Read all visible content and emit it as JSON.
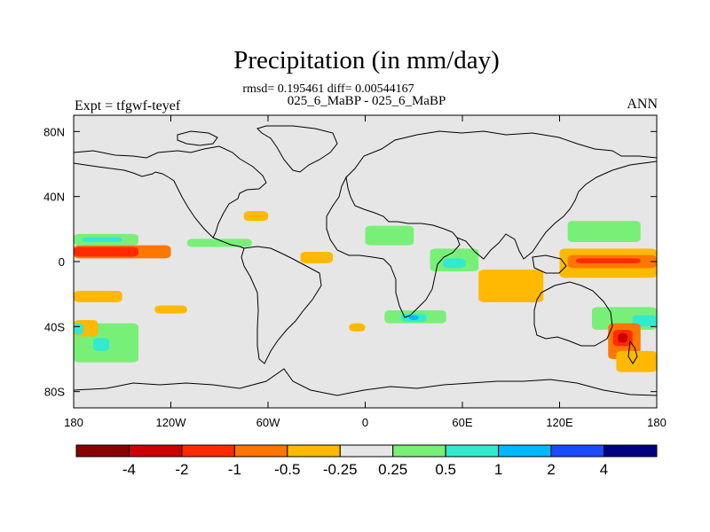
{
  "plot": {
    "title": "Precipitation (in mm/day)",
    "stats": "rmsd= 0.195461 diff= 0.00544167",
    "experiments": "025_6_MaBP - 025_6_MaBP",
    "expt_label": "Expt = tfgwf-teyef",
    "season": "ANN"
  },
  "chart_data": {
    "type": "heatmap",
    "title": "Precipitation (in mm/day)",
    "projection": "cylindrical-equidistant",
    "xlim": [
      -180,
      180
    ],
    "ylim": [
      -90,
      90
    ],
    "x_ticks": [
      {
        "value": -180,
        "label": "180"
      },
      {
        "value": -120,
        "label": "120W"
      },
      {
        "value": -60,
        "label": "60W"
      },
      {
        "value": 0,
        "label": "0"
      },
      {
        "value": 60,
        "label": "60E"
      },
      {
        "value": 120,
        "label": "120E"
      },
      {
        "value": 180,
        "label": "180"
      }
    ],
    "y_ticks": [
      {
        "value": 80,
        "label": "80N"
      },
      {
        "value": 40,
        "label": "40N"
      },
      {
        "value": 0,
        "label": "0"
      },
      {
        "value": -40,
        "label": "40S"
      },
      {
        "value": -80,
        "label": "80S"
      }
    ],
    "colorbar": {
      "colors": [
        "#8b0000",
        "#cc0000",
        "#ff2a00",
        "#ff7700",
        "#ffb900",
        "#e6e6e6",
        "#78f078",
        "#33ead0",
        "#00b8ff",
        "#1a4bff",
        "#000080"
      ],
      "labels": [
        "-4",
        "-2",
        "-1",
        "-0.5",
        "-0.25",
        "0.25",
        "0.5",
        "1",
        "2",
        "4"
      ]
    },
    "anomaly_regions": [
      {
        "lon": [
          -180,
          -120
        ],
        "lat": [
          2,
          10
        ],
        "level": -0.5
      },
      {
        "lon": [
          -180,
          -140
        ],
        "lat": [
          3,
          9
        ],
        "level": -1
      },
      {
        "lon": [
          -180,
          -140
        ],
        "lat": [
          10,
          17
        ],
        "level": 0.5
      },
      {
        "lon": [
          -175,
          -150
        ],
        "lat": [
          12,
          15
        ],
        "level": 1
      },
      {
        "lon": [
          -110,
          -70
        ],
        "lat": [
          9,
          14
        ],
        "level": 0.5
      },
      {
        "lon": [
          -75,
          -60
        ],
        "lat": [
          25,
          31
        ],
        "level": -0.25
      },
      {
        "lon": [
          -40,
          -20
        ],
        "lat": [
          -1,
          6
        ],
        "level": -0.25
      },
      {
        "lon": [
          -180,
          -150
        ],
        "lat": [
          -25,
          -18
        ],
        "level": -0.25
      },
      {
        "lon": [
          -180,
          -140
        ],
        "lat": [
          -62,
          -38
        ],
        "level": 0.5
      },
      {
        "lon": [
          -168,
          -158
        ],
        "lat": [
          -55,
          -47
        ],
        "level": 1
      },
      {
        "lon": [
          -180,
          -165
        ],
        "lat": [
          -46,
          -36
        ],
        "level": -0.25
      },
      {
        "lon": [
          -180,
          -174
        ],
        "lat": [
          -45,
          -38
        ],
        "level": 1
      },
      {
        "lon": [
          -130,
          -110
        ],
        "lat": [
          -32,
          -27
        ],
        "level": -0.25
      },
      {
        "lon": [
          0,
          30
        ],
        "lat": [
          10,
          22
        ],
        "level": 0.5
      },
      {
        "lon": [
          12,
          50
        ],
        "lat": [
          -38,
          -30
        ],
        "level": 0.5
      },
      {
        "lon": [
          22,
          38
        ],
        "lat": [
          -37,
          -32
        ],
        "level": 1
      },
      {
        "lon": [
          27,
          33
        ],
        "lat": [
          -36,
          -33
        ],
        "level": 2
      },
      {
        "lon": [
          40,
          70
        ],
        "lat": [
          -6,
          8
        ],
        "level": 0.5
      },
      {
        "lon": [
          48,
          62
        ],
        "lat": [
          -4,
          2
        ],
        "level": 1
      },
      {
        "lon": [
          70,
          110
        ],
        "lat": [
          -25,
          -5
        ],
        "level": -0.25
      },
      {
        "lon": [
          120,
          180
        ],
        "lat": [
          -10,
          8
        ],
        "level": -0.25
      },
      {
        "lon": [
          125,
          180
        ],
        "lat": [
          -4,
          4
        ],
        "level": -0.5
      },
      {
        "lon": [
          130,
          170
        ],
        "lat": [
          -1,
          2
        ],
        "level": -1
      },
      {
        "lon": [
          125,
          170
        ],
        "lat": [
          12,
          25
        ],
        "level": 0.5
      },
      {
        "lon": [
          140,
          180
        ],
        "lat": [
          -42,
          -28
        ],
        "level": 0.5
      },
      {
        "lon": [
          165,
          180
        ],
        "lat": [
          -40,
          -33
        ],
        "level": 1
      },
      {
        "lon": [
          150,
          170
        ],
        "lat": [
          -60,
          -38
        ],
        "level": -0.5
      },
      {
        "lon": [
          153,
          165
        ],
        "lat": [
          -52,
          -42
        ],
        "level": -1
      },
      {
        "lon": [
          156,
          162
        ],
        "lat": [
          -50,
          -44
        ],
        "level": -2
      },
      {
        "lon": [
          155,
          180
        ],
        "lat": [
          -68,
          -55
        ],
        "level": -0.25
      },
      {
        "lon": [
          -10,
          0
        ],
        "lat": [
          -43,
          -38
        ],
        "level": -0.25
      }
    ]
  }
}
